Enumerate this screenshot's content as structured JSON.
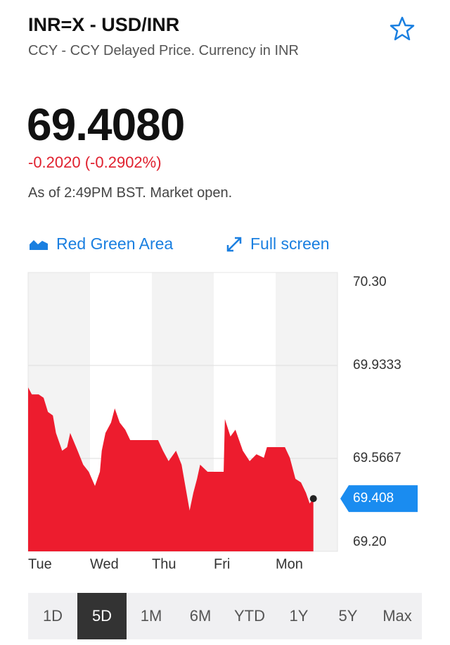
{
  "header": {
    "title": "INR=X - USD/INR",
    "subtitle": "CCY - CCY Delayed Price. Currency in INR",
    "price": "69.4080",
    "change": "-0.2020 (-0.2902%)",
    "status": "As of 2:49PM BST. Market open."
  },
  "controls": {
    "chart_style": "Red Green Area",
    "full_screen": "Full screen"
  },
  "chart_data": {
    "type": "area",
    "color": "#ed1c2e",
    "x": [
      0,
      0.06,
      0.17,
      0.25,
      0.32,
      0.4,
      0.45,
      0.55,
      0.63,
      0.68,
      0.8,
      0.89,
      0.98,
      1.08,
      1.16,
      1.19,
      1.25,
      1.34,
      1.4,
      1.48,
      1.57,
      1.65,
      1.82,
      2.1,
      2.18,
      2.27,
      2.39,
      2.48,
      2.56,
      2.61,
      2.67,
      2.73,
      2.78,
      2.9,
      3.16,
      3.18,
      3.27,
      3.35,
      3.47,
      3.58,
      3.69,
      3.81,
      3.86,
      4.15,
      4.23,
      4.32,
      4.41,
      4.49,
      4.55,
      4.61
    ],
    "values": [
      69.847,
      69.819,
      69.819,
      69.806,
      69.75,
      69.736,
      69.667,
      69.597,
      69.611,
      69.667,
      69.597,
      69.542,
      69.514,
      69.458,
      69.514,
      69.597,
      69.667,
      69.708,
      69.764,
      69.708,
      69.68,
      69.639,
      69.639,
      69.639,
      69.597,
      69.556,
      69.597,
      69.542,
      69.431,
      69.361,
      69.431,
      69.486,
      69.542,
      69.514,
      69.514,
      69.722,
      69.653,
      69.68,
      69.597,
      69.556,
      69.583,
      69.569,
      69.611,
      69.611,
      69.569,
      69.486,
      69.472,
      69.431,
      69.389,
      69.408
    ],
    "xlim": [
      0,
      5
    ],
    "xticks": [
      {
        "value": 0,
        "label": "Tue"
      },
      {
        "value": 1,
        "label": "Wed"
      },
      {
        "value": 2,
        "label": "Thu"
      },
      {
        "value": 3,
        "label": "Fri"
      },
      {
        "value": 4,
        "label": "Mon"
      }
    ],
    "ylim": [
      69.2,
      70.3
    ],
    "yticks": [
      {
        "value": 70.3,
        "label": "70.30"
      },
      69.9333,
      69.5667,
      {
        "value": 69.2,
        "label": "69.20"
      }
    ],
    "grid": true,
    "last_price": 69.408,
    "last_price_color": "#1a8cf0"
  },
  "ranges": {
    "tabs": [
      "1D",
      "5D",
      "1M",
      "6M",
      "YTD",
      "1Y",
      "5Y",
      "Max"
    ],
    "selected": 1
  }
}
